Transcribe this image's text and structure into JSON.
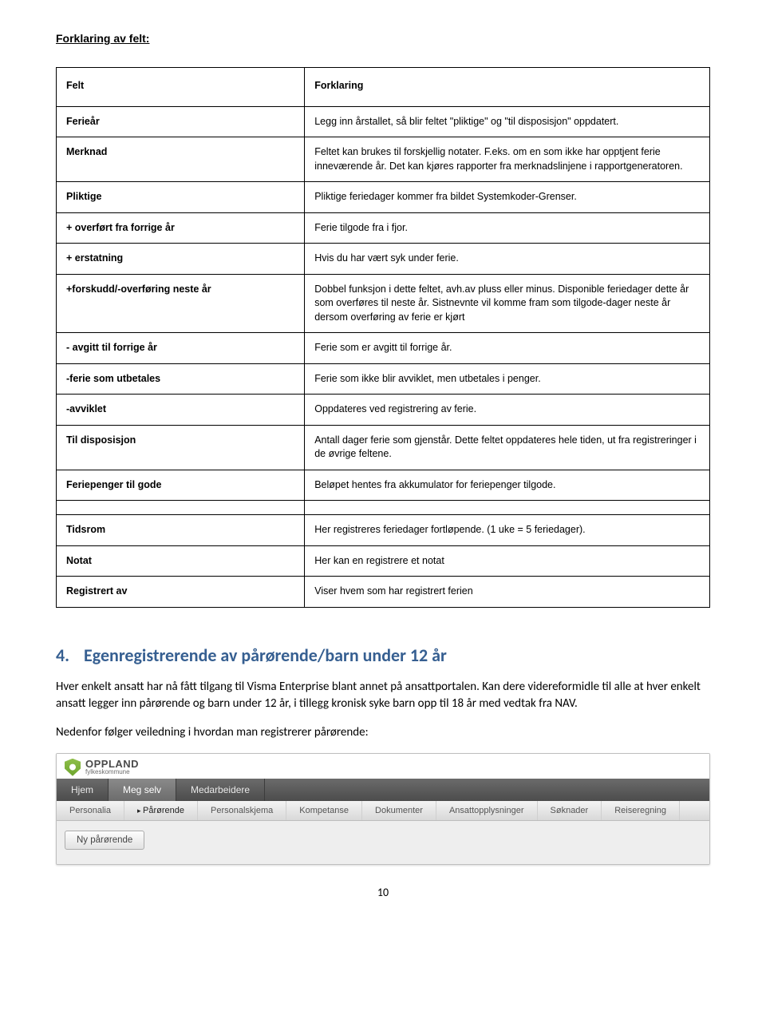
{
  "section_label": "Forklaring av felt:",
  "table": {
    "header": {
      "left": "Felt",
      "right": "Forklaring"
    },
    "rows": [
      {
        "left": "Ferieår",
        "right": "Legg inn årstallet, så blir feltet \"pliktige\" og \"til disposisjon\" oppdatert."
      },
      {
        "left": "Merknad",
        "right": "Feltet kan brukes til forskjellig notater. F.eks. om en som ikke har opptjent ferie inneværende år. Det kan kjøres rapporter fra merknadslinjene i rapportgeneratoren."
      },
      {
        "left": "Pliktige",
        "right": "Pliktige feriedager kommer fra bildet Systemkoder-Grenser."
      },
      {
        "left": "+ overført fra forrige år",
        "right": "Ferie tilgode fra i fjor."
      },
      {
        "left": "+ erstatning",
        "right": "Hvis du har vært syk under ferie."
      },
      {
        "left": "+forskudd/-overføring neste år",
        "right": "Dobbel funksjon i dette feltet, avh.av pluss eller minus. Disponible feriedager dette år som overføres til neste år. Sistnevnte vil komme fram som tilgode-dager neste år dersom overføring av ferie er kjørt"
      },
      {
        "left": "- avgitt til forrige år",
        "right": "Ferie som er avgitt til forrige år."
      },
      {
        "left": "-ferie som utbetales",
        "right": "Ferie som ikke blir avviklet, men utbetales i penger."
      },
      {
        "left": "-avviklet",
        "right": "Oppdateres ved registrering av ferie."
      },
      {
        "left": "Til disposisjon",
        "right": "Antall dager ferie som gjenstår. Dette feltet oppdateres hele tiden, ut fra registreringer i de øvrige feltene."
      },
      {
        "left": "Feriepenger til gode",
        "right": "Beløpet hentes fra akkumulator for feriepenger tilgode."
      }
    ],
    "rows2": [
      {
        "left": "Tidsrom",
        "right": "Her registreres feriedager fortløpende. (1 uke = 5 feriedager)."
      },
      {
        "left": "Notat",
        "right": "Her kan en registrere et notat"
      },
      {
        "left": "Registrert av",
        "right": "Viser hvem som har registrert ferien"
      }
    ]
  },
  "heading_num": "4.",
  "heading_text": "Egenregistrerende av pårørende/barn under 12 år",
  "para1": "Hver enkelt ansatt har nå fått tilgang til Visma Enterprise blant annet på ansattportalen. Kan dere videreformidle til alle at hver enkelt ansatt legger inn pårørende og barn under 12 år, i tillegg kronisk syke barn opp til 18 år med vedtak fra NAV.",
  "para2": "Nedenfor følger veiledning i hvordan man registrerer pårørende:",
  "app": {
    "brand_top": "OPPLAND",
    "brand_sub": "fylkeskommune",
    "main_nav": [
      "Hjem",
      "Meg selv",
      "Medarbeidere"
    ],
    "main_nav_active_index": 1,
    "sub_nav": [
      "Personalia",
      "Pårørende",
      "Personalskjema",
      "Kompetanse",
      "Dokumenter",
      "Ansattopplysninger",
      "Søknader",
      "Reiseregning"
    ],
    "sub_nav_active_index": 1,
    "button_label": "Ny pårørende"
  },
  "page_number": "10"
}
